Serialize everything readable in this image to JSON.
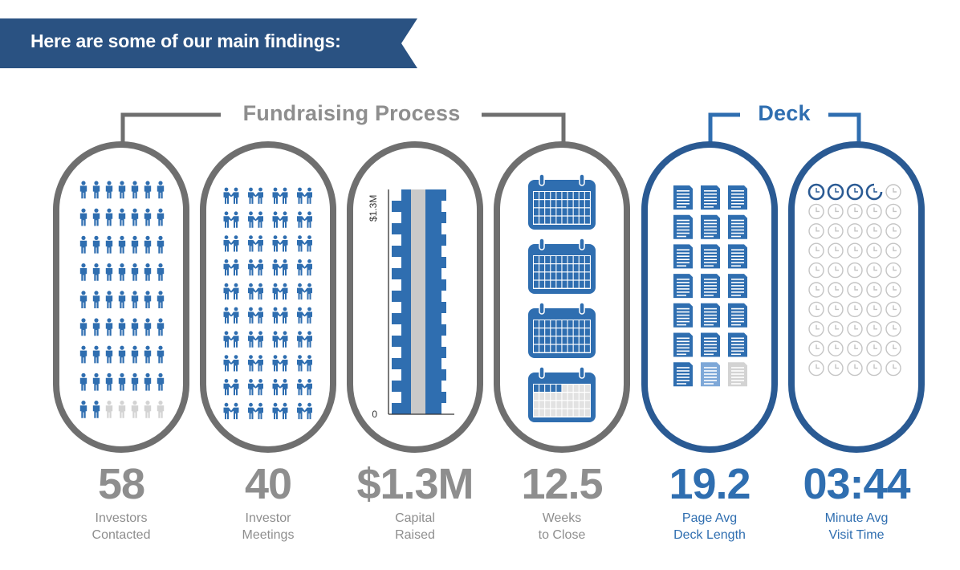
{
  "banner": {
    "text": "Here are some of our main findings:",
    "color": "#2a5282"
  },
  "colors": {
    "gray_frame": "#6f6f6f",
    "gray_text": "#8e8e8e",
    "blue": "#2f6eb0",
    "dark_blue": "#2a5a93",
    "light_gray": "#d3d3d3"
  },
  "sections": {
    "fundraising": "Fundraising Process",
    "deck": "Deck"
  },
  "stats": [
    {
      "value": "58",
      "label1": "Investors",
      "label2": "Contacted",
      "icon": "person-icon",
      "filled": 58,
      "total": 63
    },
    {
      "value": "40",
      "label1": "Investor",
      "label2": "Meetings",
      "icon": "handshake-icon",
      "filled": 40,
      "total": 40
    },
    {
      "value": "$1.3M",
      "label1": "Capital",
      "label2": "Raised",
      "icon": "money-stack-icon",
      "axis_top": "$1.3M",
      "axis_bottom": "0"
    },
    {
      "value": "12.5",
      "label1": "Weeks",
      "label2": "to Close",
      "icon": "calendar-icon",
      "filled": 12.5,
      "total": 16
    },
    {
      "value": "19.2",
      "label1": "Page Avg",
      "label2": "Deck Length",
      "icon": "document-icon",
      "filled": 19.2,
      "total": 21
    },
    {
      "value": "03:44",
      "label1": "Minute Avg",
      "label2": "Visit Time",
      "icon": "clock-icon",
      "filled": 3.73,
      "total": 50
    }
  ]
}
